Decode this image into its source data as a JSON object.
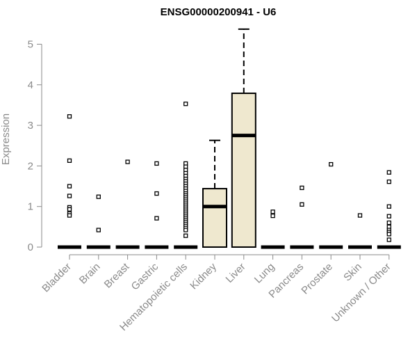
{
  "chart_data": {
    "type": "boxplot",
    "title": "ENSG00000200941 - U6",
    "ylabel": "Expression",
    "xlabel": "",
    "ylim": [
      0,
      5.3
    ],
    "yticks": [
      "0",
      "1",
      "2",
      "3",
      "4",
      "5"
    ],
    "box_fill": "#efe8cf",
    "categories": [
      "Bladder",
      "Brain",
      "Breast",
      "Gastric",
      "Hematopoietic cells",
      "Kidney",
      "Liver",
      "Lung",
      "Pancreas",
      "Prostate",
      "Skin",
      "Unknown / Other"
    ],
    "boxes": [
      {
        "category": "Bladder",
        "min": 0,
        "q1": 0,
        "median": 0,
        "q3": 0,
        "max": 0,
        "outliers": [
          3.22,
          2.13,
          1.5,
          1.26,
          0.98,
          0.93,
          0.83,
          0.78
        ]
      },
      {
        "category": "Brain",
        "min": 0,
        "q1": 0,
        "median": 0,
        "q3": 0,
        "max": 0,
        "outliers": [
          1.24,
          0.42
        ]
      },
      {
        "category": "Breast",
        "min": 0,
        "q1": 0,
        "median": 0,
        "q3": 0,
        "max": 0,
        "outliers": [
          2.1
        ]
      },
      {
        "category": "Gastric",
        "min": 0,
        "q1": 0,
        "median": 0,
        "q3": 0,
        "max": 0,
        "outliers": [
          2.06,
          1.32,
          0.71
        ]
      },
      {
        "category": "Hematopoietic cells",
        "min": 0,
        "q1": 0,
        "median": 0,
        "q3": 0,
        "max": 0,
        "outliers": [
          3.53,
          2.06,
          1.98,
          1.9,
          1.82,
          1.75,
          1.68,
          1.62,
          1.56,
          1.5,
          1.44,
          1.38,
          1.32,
          1.27,
          1.22,
          1.17,
          1.12,
          1.07,
          1.02,
          0.97,
          0.92,
          0.87,
          0.82,
          0.77,
          0.72,
          0.67,
          0.62,
          0.57,
          0.52,
          0.47,
          0.42,
          0.28
        ]
      },
      {
        "category": "Kidney",
        "min": 0,
        "q1": 0,
        "median": 1.0,
        "q3": 1.44,
        "max": 2.63,
        "outliers": []
      },
      {
        "category": "Liver",
        "min": 0,
        "q1": 0,
        "median": 2.75,
        "q3": 3.79,
        "max": 5.37,
        "outliers": []
      },
      {
        "category": "Lung",
        "min": 0,
        "q1": 0,
        "median": 0,
        "q3": 0,
        "max": 0,
        "outliers": [
          0.87,
          0.77
        ]
      },
      {
        "category": "Pancreas",
        "min": 0,
        "q1": 0,
        "median": 0,
        "q3": 0,
        "max": 0,
        "outliers": [
          1.46,
          1.05
        ]
      },
      {
        "category": "Prostate",
        "min": 0,
        "q1": 0,
        "median": 0,
        "q3": 0,
        "max": 0,
        "outliers": [
          2.04
        ]
      },
      {
        "category": "Skin",
        "min": 0,
        "q1": 0,
        "median": 0,
        "q3": 0,
        "max": 0,
        "outliers": [
          0.78
        ]
      },
      {
        "category": "Unknown / Other",
        "min": 0,
        "q1": 0,
        "median": 0,
        "q3": 0,
        "max": 0,
        "outliers": [
          1.84,
          1.61,
          1.0,
          0.76,
          0.6,
          0.5,
          0.42,
          0.37,
          0.32,
          0.18
        ]
      }
    ]
  }
}
